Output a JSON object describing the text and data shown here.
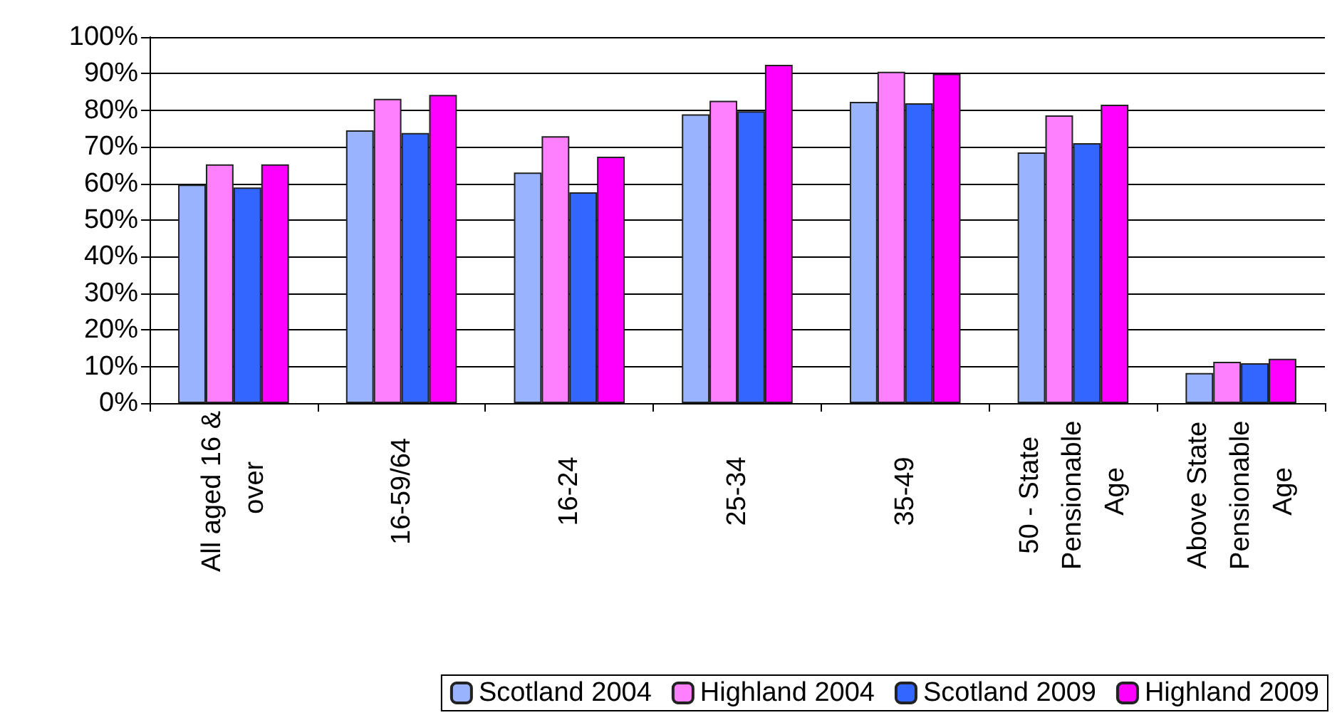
{
  "chart_data": {
    "type": "bar",
    "categories": [
      "All aged 16 & over",
      "16-59/64",
      "16-24",
      "25-34",
      "35-49",
      "50 - State Pensionable Age",
      "Above State Pensionable Age"
    ],
    "series": [
      {
        "name": "Scotland 2004",
        "color": "#99b3ff",
        "values": [
          59.7,
          74.5,
          63.0,
          78.9,
          82.3,
          68.5,
          8.2
        ]
      },
      {
        "name": "Highland 2004",
        "color": "#ff80ff",
        "values": [
          65.2,
          83.1,
          72.9,
          82.6,
          90.5,
          78.6,
          11.3
        ]
      },
      {
        "name": "Scotland 2009",
        "color": "#3366ff",
        "values": [
          58.9,
          73.8,
          57.6,
          79.7,
          81.9,
          71.0,
          10.9
        ]
      },
      {
        "name": "Highland 2009",
        "color": "#ff00ff",
        "values": [
          65.2,
          84.2,
          67.3,
          92.4,
          90.0,
          81.5,
          12.1
        ]
      }
    ],
    "ylim": [
      0,
      100
    ],
    "yticks": [
      {
        "value": 0,
        "label": "0%"
      },
      {
        "value": 10,
        "label": "10%"
      },
      {
        "value": 20,
        "label": "20%"
      },
      {
        "value": 30,
        "label": "30%"
      },
      {
        "value": 40,
        "label": "40%"
      },
      {
        "value": 50,
        "label": "50%"
      },
      {
        "value": 60,
        "label": "60%"
      },
      {
        "value": 70,
        "label": "70%"
      },
      {
        "value": 80,
        "label": "80%"
      },
      {
        "value": 90,
        "label": "90%"
      },
      {
        "value": 100,
        "label": "100%"
      }
    ],
    "grid": "y",
    "legend": "bottom"
  }
}
